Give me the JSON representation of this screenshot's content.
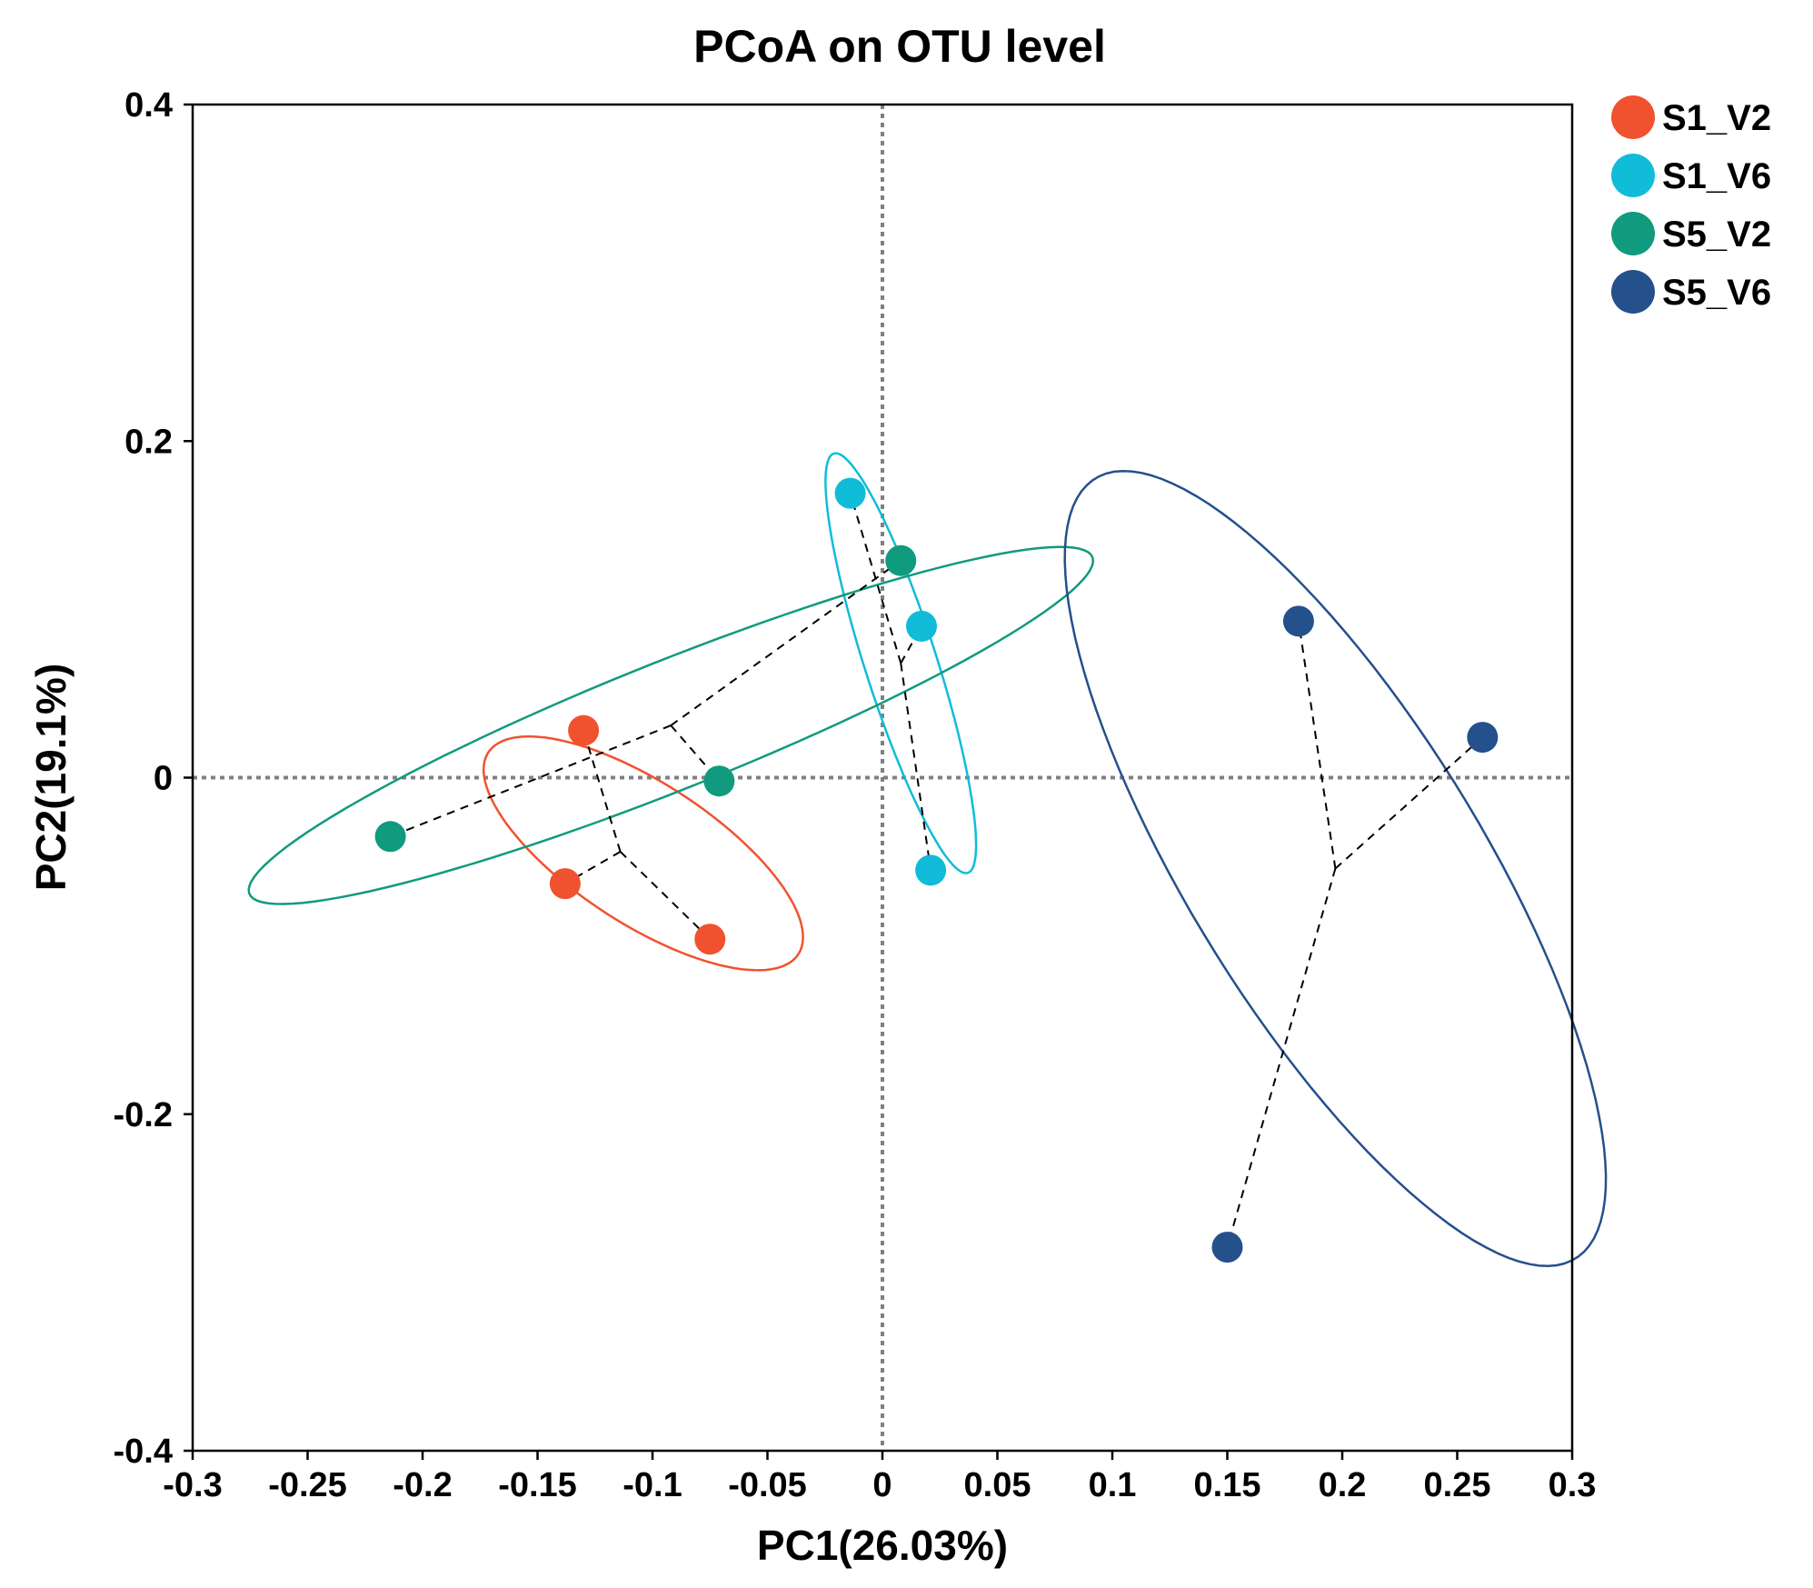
{
  "chart_data": {
    "type": "scatter",
    "title": "PCoA on OTU level",
    "xlabel": "PC1(26.03%)",
    "ylabel": "PC2(19.1%)",
    "xlim": [
      -0.3,
      0.3
    ],
    "ylim": [
      -0.4,
      0.4
    ],
    "xticks": [
      "-0.3",
      "-0.25",
      "-0.2",
      "-0.15",
      "-0.1",
      "-0.05",
      "0",
      "0.05",
      "0.1",
      "0.15",
      "0.2",
      "0.25",
      "0.3"
    ],
    "xtick_values": [
      -0.3,
      -0.25,
      -0.2,
      -0.15,
      -0.1,
      -0.05,
      0,
      0.05,
      0.1,
      0.15,
      0.2,
      0.25,
      0.3
    ],
    "yticks": [
      "0.4",
      "0.2",
      "0",
      "-0.2",
      "-0.4"
    ],
    "ytick_values": [
      0.4,
      0.2,
      0,
      -0.2,
      -0.4
    ],
    "reference_lines": {
      "x": 0,
      "y": 0,
      "style": "dotted"
    },
    "legend_position": "top-right",
    "series": [
      {
        "name": "S1_V2",
        "color": "#f0522f",
        "points": [
          [
            -0.13,
            0.028
          ],
          [
            -0.138,
            -0.063
          ],
          [
            -0.075,
            -0.096
          ]
        ],
        "centroid": [
          -0.114,
          -0.044
        ],
        "ellipse": {
          "center": [
            -0.104,
            -0.045
          ],
          "semi_axes": [
            0.091,
            0.037
          ],
          "angle_deg": -45
        }
      },
      {
        "name": "S1_V6",
        "color": "#10bcd8",
        "points": [
          [
            -0.014,
            0.169
          ],
          [
            0.017,
            0.09
          ],
          [
            0.021,
            -0.055
          ]
        ],
        "centroid": [
          0.008,
          0.068
        ],
        "ellipse": {
          "center": [
            0.008,
            0.068
          ],
          "semi_axes": [
            0.128,
            0.016
          ],
          "angle_deg": -77
        }
      },
      {
        "name": "S5_V2",
        "color": "#109a7e",
        "points": [
          [
            -0.214,
            -0.035
          ],
          [
            -0.071,
            -0.002
          ],
          [
            0.008,
            0.129
          ]
        ],
        "centroid": [
          -0.092,
          0.031
        ],
        "ellipse": {
          "center": [
            -0.092,
            0.031
          ],
          "semi_axes": [
            0.209,
            0.036
          ],
          "angle_deg": 29
        }
      },
      {
        "name": "S5_V6",
        "color": "#24508c",
        "points": [
          [
            0.181,
            0.093
          ],
          [
            0.261,
            0.024
          ],
          [
            0.15,
            -0.279
          ]
        ],
        "centroid": [
          0.197,
          -0.054
        ],
        "ellipse": {
          "center": [
            0.197,
            -0.054
          ],
          "semi_axes": [
            0.255,
            0.068
          ],
          "angle_deg": -67
        }
      }
    ]
  }
}
